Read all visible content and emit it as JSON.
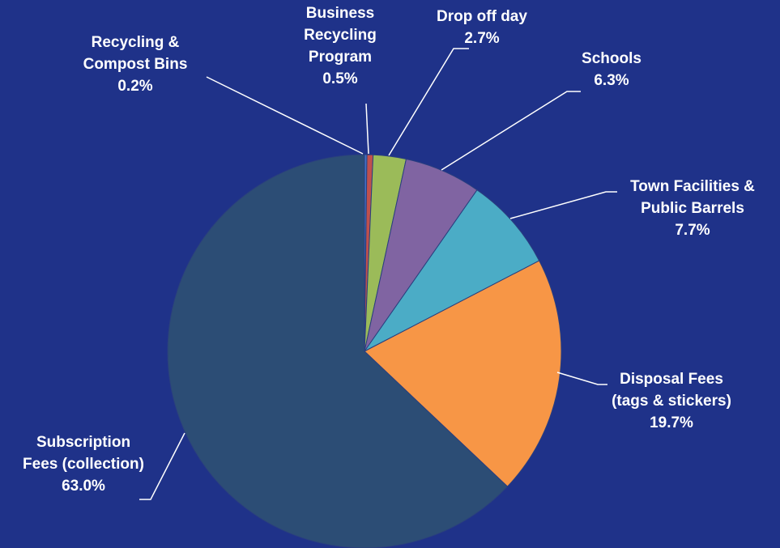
{
  "chart_data": {
    "type": "pie",
    "title": "",
    "slices": [
      {
        "label_lines": [
          "Recycling &",
          "Compost Bins"
        ],
        "pct_label": "0.2%",
        "value": 0.2,
        "color": "#4472C4"
      },
      {
        "label_lines": [
          "Business",
          "Recycling",
          "Program"
        ],
        "pct_label": "0.5%",
        "value": 0.5,
        "color": "#C0504D"
      },
      {
        "label_lines": [
          "Drop off day"
        ],
        "pct_label": "2.7%",
        "value": 2.7,
        "color": "#9BBB59"
      },
      {
        "label_lines": [
          "Schools"
        ],
        "pct_label": "6.3%",
        "value": 6.3,
        "color": "#8064A2"
      },
      {
        "label_lines": [
          "Town Facilities &",
          "Public Barrels"
        ],
        "pct_label": "7.7%",
        "value": 7.7,
        "color": "#4BACC6"
      },
      {
        "label_lines": [
          "Disposal Fees",
          "(tags & stickers)"
        ],
        "pct_label": "19.7%",
        "value": 19.7,
        "color": "#F79646"
      },
      {
        "label_lines": [
          "Subscription",
          "Fees (collection)"
        ],
        "pct_label": "63.0%",
        "value": 63.0,
        "color": "#2C4D75"
      }
    ]
  }
}
